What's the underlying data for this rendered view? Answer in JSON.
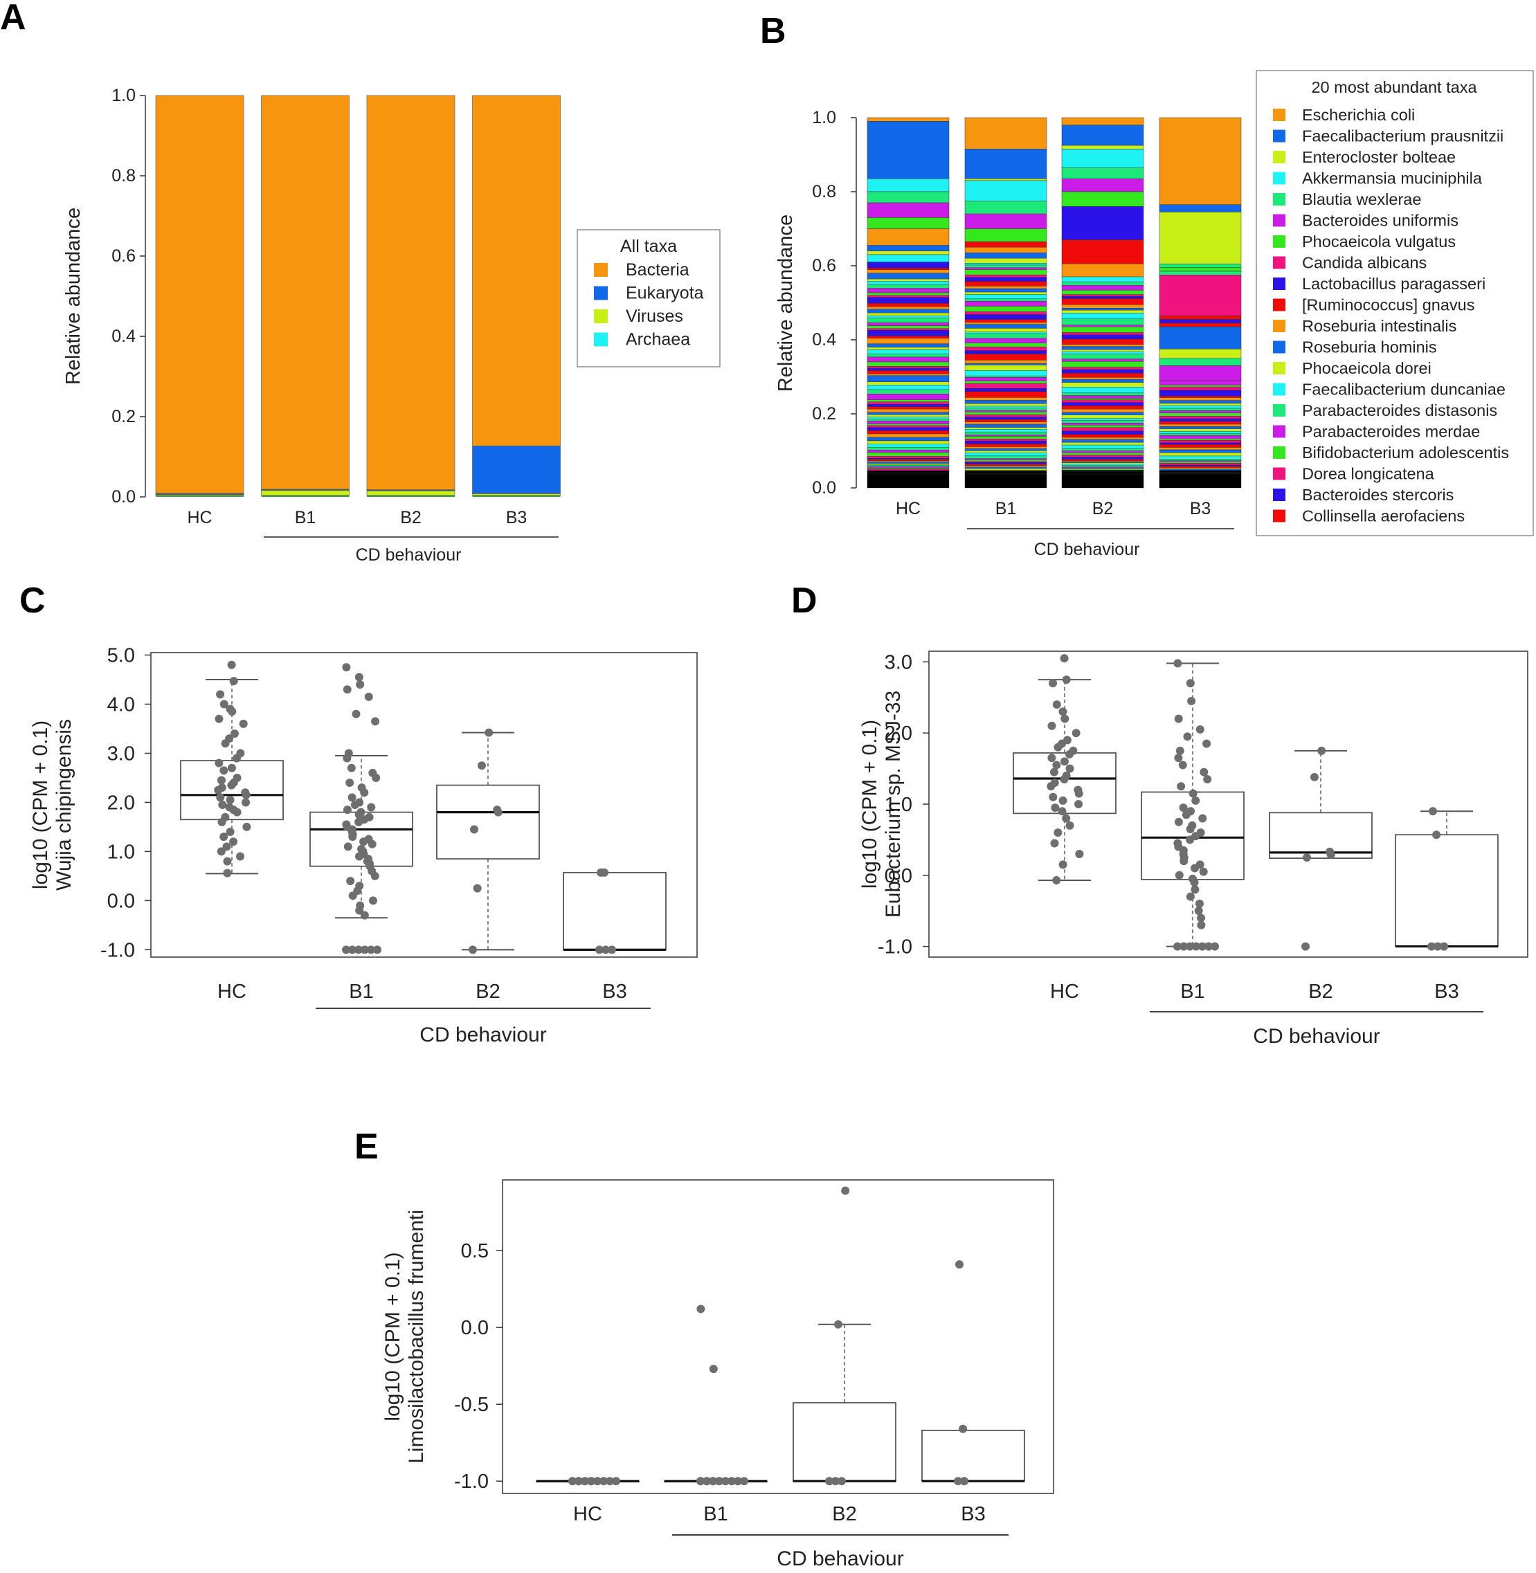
{
  "panels": {
    "A": "A",
    "B": "B",
    "C": "C",
    "D": "D",
    "E": "E"
  },
  "chart_data": [
    {
      "id": "A",
      "type": "bar",
      "stacked": true,
      "categories": [
        "HC",
        "B1",
        "B2",
        "B3"
      ],
      "group_label": "CD behaviour",
      "grouped_categories": [
        "B1",
        "B2",
        "B3"
      ],
      "ylabel": "Relative abundance",
      "ylim": [
        0,
        1
      ],
      "yticks": [
        "0.0",
        "0.2",
        "0.4",
        "0.6",
        "0.8",
        "1.0"
      ],
      "legend_title": "All taxa",
      "series": [
        {
          "name": "Bacteria",
          "color": "#f7950e",
          "values": [
            0.994,
            0.981,
            0.985,
            0.877
          ]
        },
        {
          "name": "Eukaryota",
          "color": "#1168e8",
          "values": [
            0.002,
            0.002,
            0.002,
            0.118
          ]
        },
        {
          "name": "Viruses",
          "color": "#c8f016",
          "values": [
            0.002,
            0.012,
            0.011,
            0.004
          ]
        },
        {
          "name": "Archaea",
          "color": "#1ff2f2",
          "values": [
            0.001,
            0.001,
            0.001,
            0.001
          ]
        }
      ],
      "extra_tiny_layer_color": "#4a9a4a"
    },
    {
      "id": "B",
      "type": "bar",
      "stacked": true,
      "categories": [
        "HC",
        "B1",
        "B2",
        "B3"
      ],
      "group_label": "CD behaviour",
      "grouped_categories": [
        "B1",
        "B2",
        "B3"
      ],
      "ylabel": "Relative abundance",
      "ylim": [
        0,
        1
      ],
      "yticks": [
        "0.0",
        "0.2",
        "0.4",
        "0.6",
        "0.8",
        "1.0"
      ],
      "legend_title": "20 most abundant taxa",
      "legend": [
        {
          "name": "Escherichia coli",
          "color": "#f7950e"
        },
        {
          "name": "Faecalibacterium prausnitzii",
          "color": "#1168e8"
        },
        {
          "name": "Enterocloster bolteae",
          "color": "#c8f016"
        },
        {
          "name": "Akkermansia muciniphila",
          "color": "#1ff2f2"
        },
        {
          "name": "Blautia wexlerae",
          "color": "#1de87a"
        },
        {
          "name": "Bacteroides uniformis",
          "color": "#cc1de8"
        },
        {
          "name": "Phocaeicola vulgatus",
          "color": "#35e81d"
        },
        {
          "name": "Candida albicans",
          "color": "#f0127f"
        },
        {
          "name": "Lactobacillus paragasseri",
          "color": "#2a12e8"
        },
        {
          "name": "[Ruminococcus] gnavus",
          "color": "#f00a0a"
        },
        {
          "name": "Roseburia intestinalis",
          "color": "#f7950e"
        },
        {
          "name": "Roseburia hominis",
          "color": "#1168e8"
        },
        {
          "name": "Phocaeicola dorei",
          "color": "#c8f016"
        },
        {
          "name": "Faecalibacterium duncaniae",
          "color": "#1ff2f2"
        },
        {
          "name": "Parabacteroides distasonis",
          "color": "#1de87a"
        },
        {
          "name": "Parabacteroides merdae",
          "color": "#cc1de8"
        },
        {
          "name": "Bifidobacterium adolescentis",
          "color": "#35e81d"
        },
        {
          "name": "Dorea longicatena",
          "color": "#f0127f"
        },
        {
          "name": "Bacteroides stercoris",
          "color": "#2a12e8"
        },
        {
          "name": "Collinsella aerofaciens",
          "color": "#f00a0a"
        }
      ],
      "top_segments": [
        [
          {
            "name": "Escherichia coli",
            "value": 0.01
          },
          {
            "name": "Faecalibacterium prausnitzii",
            "value": 0.155
          },
          {
            "name": "Akkermansia muciniphila",
            "value": 0.035
          },
          {
            "name": "Blautia wexlerae",
            "value": 0.03
          },
          {
            "name": "Bacteroides uniformis",
            "value": 0.04
          },
          {
            "name": "Phocaeicola vulgatus",
            "value": 0.03
          },
          {
            "name": "Roseburia intestinalis",
            "value": 0.045
          },
          {
            "name": "Roseburia hominis",
            "value": 0.015
          },
          {
            "name": "Phocaeicola dorei",
            "value": 0.01
          },
          {
            "name": "Faecalibacterium duncaniae",
            "value": 0.02
          }
        ],
        [
          {
            "name": "Escherichia coli",
            "value": 0.085
          },
          {
            "name": "Faecalibacterium prausnitzii",
            "value": 0.08
          },
          {
            "name": "Enterocloster bolteae",
            "value": 0.005
          },
          {
            "name": "Akkermansia muciniphila",
            "value": 0.055
          },
          {
            "name": "Blautia wexlerae",
            "value": 0.035
          },
          {
            "name": "Bacteroides uniformis",
            "value": 0.04
          },
          {
            "name": "Phocaeicola vulgatus",
            "value": 0.035
          },
          {
            "name": "[Ruminococcus] gnavus",
            "value": 0.015
          },
          {
            "name": "Roseburia intestinalis",
            "value": 0.015
          }
        ],
        [
          {
            "name": "Escherichia coli",
            "value": 0.02
          },
          {
            "name": "Faecalibacterium prausnitzii",
            "value": 0.055
          },
          {
            "name": "Enterocloster bolteae",
            "value": 0.01
          },
          {
            "name": "Akkermansia muciniphila",
            "value": 0.05
          },
          {
            "name": "Blautia wexlerae",
            "value": 0.03
          },
          {
            "name": "Bacteroides uniformis",
            "value": 0.035
          },
          {
            "name": "Phocaeicola vulgatus",
            "value": 0.04
          },
          {
            "name": "Lactobacillus paragasseri",
            "value": 0.09
          },
          {
            "name": "[Ruminococcus] gnavus",
            "value": 0.065
          },
          {
            "name": "Roseburia intestinalis",
            "value": 0.035
          }
        ],
        [
          {
            "name": "Escherichia coli",
            "value": 0.235
          },
          {
            "name": "Faecalibacterium prausnitzii",
            "value": 0.02
          },
          {
            "name": "Enterocloster bolteae",
            "value": 0.14
          },
          {
            "name": "Blautia wexlerae",
            "value": 0.01
          },
          {
            "name": "Phocaeicola vulgatus",
            "value": 0.01
          },
          {
            "name": "Blautia wexlerae",
            "value": 0.01
          },
          {
            "name": "Dorea longicatena",
            "value": 0.11
          },
          {
            "name": "[Ruminococcus] gnavus",
            "value": 0.01
          },
          {
            "name": "Lactobacillus paragasseri",
            "value": 0.01
          },
          {
            "name": "Collinsella aerofaciens",
            "value": 0.01
          },
          {
            "name": "Roseburia hominis",
            "value": 0.06
          },
          {
            "name": "Phocaeicola dorei",
            "value": 0.025
          },
          {
            "name": "Blautia wexlerae",
            "value": 0.02
          },
          {
            "name": "Bacteroides uniformis",
            "value": 0.04
          }
        ]
      ],
      "remaining_taxa_color_cycle": [
        "#f7950e",
        "#1168e8",
        "#c8f016",
        "#1ff2f2",
        "#1de87a",
        "#cc1de8",
        "#35e81d",
        "#f0127f",
        "#2a12e8",
        "#f00a0a"
      ],
      "base_color": "#000000"
    },
    {
      "id": "C",
      "type": "box",
      "categories": [
        "HC",
        "B1",
        "B2",
        "B3"
      ],
      "group_label": "CD behaviour",
      "grouped_categories": [
        "B1",
        "B2",
        "B3"
      ],
      "ylabel_line1": "log10 (CPM + 0.1)",
      "ylabel_line2": "Wujia chipingensis",
      "ylim": [
        -1.15,
        5.05
      ],
      "yticks": [
        -1,
        0,
        1,
        2,
        3,
        4,
        5
      ],
      "ytick_labels": [
        "-1.0",
        "0.0",
        "1.0",
        "2.0",
        "3.0",
        "4.0",
        "5.0"
      ],
      "boxes": [
        {
          "q1": 1.65,
          "median": 2.15,
          "q3": 2.85,
          "low": 0.55,
          "high": 4.5
        },
        {
          "q1": 0.7,
          "median": 1.45,
          "q3": 1.8,
          "low": -0.35,
          "high": 2.95
        },
        {
          "q1": 0.85,
          "median": 1.8,
          "q3": 2.35,
          "low": -1.0,
          "high": 3.42
        },
        {
          "q1": -1.0,
          "median": -1.0,
          "q3": 0.57,
          "low": -1.0,
          "high": 0.57
        }
      ],
      "points": [
        [
          4.8,
          4.47,
          4.2,
          4.0,
          3.9,
          3.85,
          3.7,
          3.6,
          3.4,
          3.3,
          3.2,
          3.0,
          2.9,
          2.8,
          2.7,
          2.65,
          2.5,
          2.45,
          2.4,
          2.35,
          2.3,
          2.25,
          2.2,
          2.15,
          2.1,
          2.05,
          2.0,
          1.95,
          1.9,
          1.85,
          1.8,
          1.7,
          1.6,
          1.5,
          1.4,
          1.3,
          1.2,
          1.1,
          1.0,
          0.9,
          0.8,
          0.56
        ],
        [
          4.75,
          4.55,
          4.4,
          4.3,
          4.15,
          3.8,
          3.65,
          3.0,
          2.9,
          2.7,
          2.6,
          2.5,
          2.4,
          2.3,
          2.2,
          2.1,
          2.0,
          1.95,
          1.9,
          1.85,
          1.8,
          1.75,
          1.7,
          1.65,
          1.6,
          1.55,
          1.5,
          1.45,
          1.4,
          1.35,
          1.3,
          1.25,
          1.2,
          1.15,
          1.1,
          1.05,
          1.0,
          0.95,
          0.9,
          0.85,
          0.8,
          0.75,
          0.7,
          0.6,
          0.5,
          0.4,
          0.3,
          0.2,
          0.1,
          0.0,
          -0.1,
          -0.2,
          -0.3,
          -1.0,
          -1.0,
          -1.0,
          -1.0,
          -1.0,
          -1.0
        ],
        [
          3.42,
          2.75,
          1.85,
          1.8,
          1.45,
          0.25,
          -1.0
        ],
        [
          0.57,
          0.57,
          -1.0,
          -1.0,
          -1.0
        ]
      ]
    },
    {
      "id": "D",
      "type": "box",
      "categories": [
        "HC",
        "B1",
        "B2",
        "B3"
      ],
      "group_label": "CD behaviour",
      "grouped_categories": [
        "B1",
        "B2",
        "B3"
      ],
      "ylabel_line1": "log10 (CPM + 0.1)",
      "ylabel_line2": "Eubacterium sp. MSJ-33",
      "ylim": [
        -1.15,
        3.15
      ],
      "yticks": [
        -1,
        0,
        1,
        2,
        3
      ],
      "ytick_labels": [
        "-1.0",
        "0.0",
        "1.0",
        "2.0",
        "3.0"
      ],
      "boxes": [
        {
          "q1": 0.87,
          "median": 1.36,
          "q3": 1.72,
          "low": -0.07,
          "high": 2.75
        },
        {
          "q1": -0.06,
          "median": 0.53,
          "q3": 1.17,
          "low": -1.0,
          "high": 2.98
        },
        {
          "q1": 0.24,
          "median": 0.32,
          "q3": 0.88,
          "low": 0.24,
          "high": 1.75
        },
        {
          "q1": -1.0,
          "median": -1.0,
          "q3": 0.57,
          "low": -1.0,
          "high": 0.9
        }
      ],
      "points": [
        [
          3.05,
          2.75,
          2.7,
          2.4,
          2.3,
          2.2,
          2.1,
          2.0,
          1.9,
          1.85,
          1.8,
          1.75,
          1.7,
          1.65,
          1.6,
          1.55,
          1.5,
          1.45,
          1.4,
          1.35,
          1.3,
          1.25,
          1.2,
          1.15,
          1.1,
          1.05,
          1.0,
          0.95,
          0.9,
          0.8,
          0.7,
          0.6,
          0.45,
          0.3,
          0.15,
          -0.07
        ],
        [
          2.98,
          2.7,
          2.45,
          2.2,
          2.05,
          1.95,
          1.85,
          1.75,
          1.65,
          1.55,
          1.45,
          1.35,
          1.25,
          1.15,
          1.05,
          0.95,
          0.9,
          0.85,
          0.8,
          0.75,
          0.7,
          0.65,
          0.6,
          0.55,
          0.5,
          0.45,
          0.4,
          0.35,
          0.3,
          0.25,
          0.2,
          0.15,
          0.1,
          0.05,
          0.0,
          -0.05,
          -0.1,
          -0.2,
          -0.3,
          -0.4,
          -0.5,
          -0.6,
          -0.7,
          -1.0,
          -1.0,
          -1.0,
          -1.0,
          -1.0,
          -1.0,
          -1.0
        ],
        [
          1.75,
          1.38,
          0.33,
          0.29,
          0.25,
          -1.0
        ],
        [
          0.9,
          0.57,
          -1.0,
          -1.0,
          -1.0
        ]
      ]
    },
    {
      "id": "E",
      "type": "box",
      "categories": [
        "HC",
        "B1",
        "B2",
        "B3"
      ],
      "group_label": "CD behaviour",
      "grouped_categories": [
        "B1",
        "B2",
        "B3"
      ],
      "ylabel_line1": "log10 (CPM + 0.1)",
      "ylabel_line2": "Limosilactobacillus frumenti",
      "ylim": [
        -1.08,
        0.96
      ],
      "yticks": [
        -1,
        -0.5,
        0,
        0.5
      ],
      "ytick_labels": [
        "-1.0",
        "-0.5",
        "0.0",
        "0.5"
      ],
      "boxes": [
        {
          "q1": -1.0,
          "median": -1.0,
          "q3": -1.0,
          "low": -1.0,
          "high": -1.0
        },
        {
          "q1": -1.0,
          "median": -1.0,
          "q3": -1.0,
          "low": -1.0,
          "high": -1.0
        },
        {
          "q1": -1.0,
          "median": -1.0,
          "q3": -0.49,
          "low": -1.0,
          "high": 0.02
        },
        {
          "q1": -1.0,
          "median": -1.0,
          "q3": -0.67,
          "low": -1.0,
          "high": -0.67
        }
      ],
      "points": [
        [
          -1.0,
          -1.0,
          -1.0,
          -1.0,
          -1.0,
          -1.0,
          -1.0,
          -1.0,
          -1.0,
          -1.0,
          -1.0,
          -1.0
        ],
        [
          0.12,
          -0.27,
          -1.0,
          -1.0,
          -1.0,
          -1.0,
          -1.0,
          -1.0,
          -1.0,
          -1.0,
          -1.0,
          -1.0,
          -1.0,
          -1.0
        ],
        [
          0.89,
          0.02,
          -1.0,
          -1.0,
          -1.0
        ],
        [
          0.41,
          -0.66,
          -1.0,
          -1.0
        ]
      ]
    }
  ]
}
